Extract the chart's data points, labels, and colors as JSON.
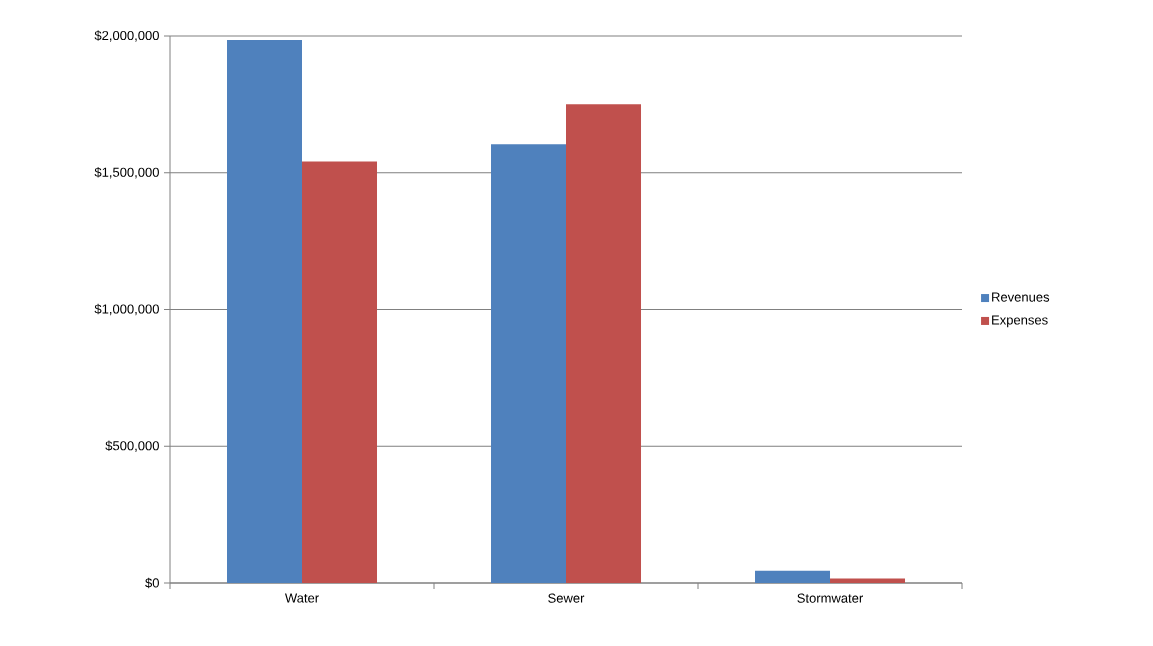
{
  "chart_data": {
    "type": "bar",
    "categories": [
      "Water",
      "Sewer",
      "Stormwater"
    ],
    "series": [
      {
        "name": "Revenues",
        "color": "#4f81bd",
        "values": [
          1985000,
          1604000,
          45000
        ]
      },
      {
        "name": "Expenses",
        "color": "#c0504d",
        "values": [
          1541000,
          1750000,
          16000
        ]
      }
    ],
    "ylim": [
      0,
      2000000
    ],
    "yticks": [
      {
        "value": 0,
        "label": "$0"
      },
      {
        "value": 500000,
        "label": "$500,000"
      },
      {
        "value": 1000000,
        "label": "$1,000,000"
      },
      {
        "value": 1500000,
        "label": "$1,500,000"
      },
      {
        "value": 2000000,
        "label": "$2,000,000"
      }
    ],
    "grid": "y",
    "legend": "right"
  }
}
